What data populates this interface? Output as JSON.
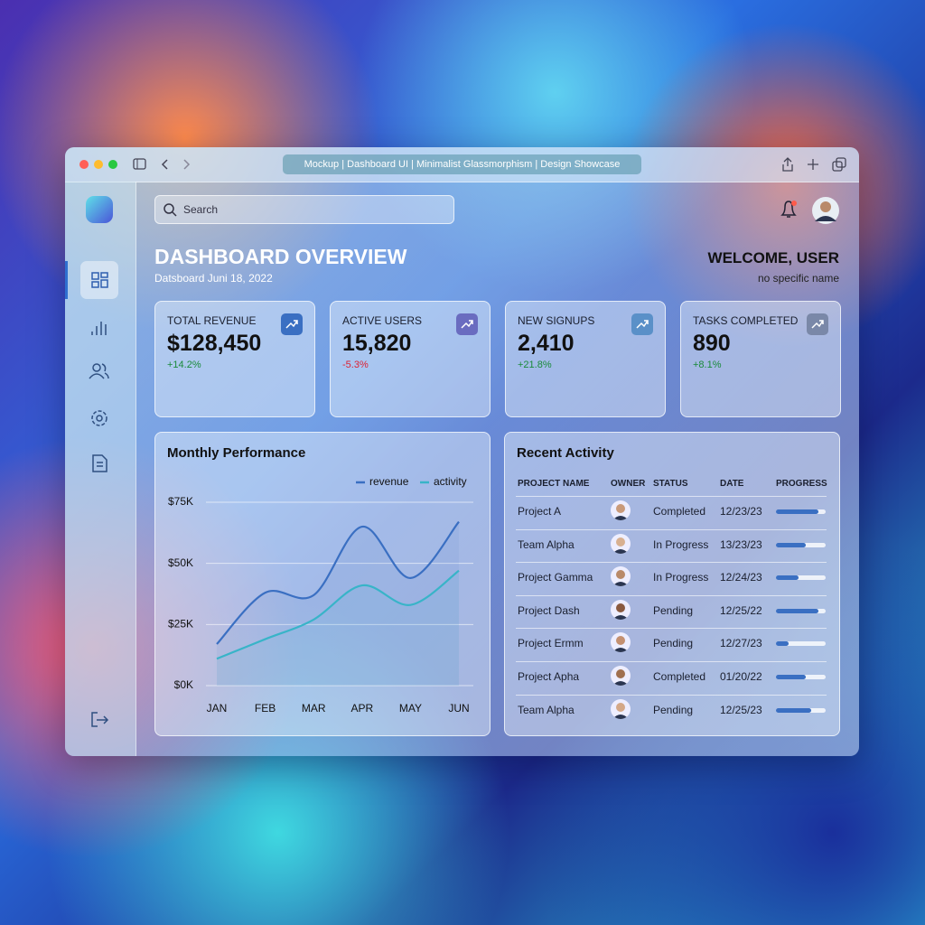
{
  "browser": {
    "tab_title": "Mockup | Dashboard UI | Minimalist Glassmorphism | Design Showcase"
  },
  "search": {
    "placeholder": "Search"
  },
  "header": {
    "title": "DASHBOARD OVERVIEW",
    "subtitle": "Datsboard Juni 18, 2022",
    "welcome": "WELCOME, USER",
    "welcome_sub": "no specific name"
  },
  "stats": [
    {
      "label": "TOTAL REVENUE",
      "value": "$128,450",
      "change": "+14.2%"
    },
    {
      "label": "ACTIVE USERS",
      "value": "15,820",
      "change": "-5.3%"
    },
    {
      "label": "NEW SIGNUPS",
      "value": "2,410",
      "change": "+21.8%"
    },
    {
      "label": "TASKS COMPLETED",
      "value": "890",
      "change": "+8.1%"
    }
  ],
  "chart_data": {
    "type": "line",
    "title": "Monthly Performance",
    "categories": [
      "JAN",
      "FEB",
      "MAR",
      "APR",
      "MAY",
      "JUN"
    ],
    "series": [
      {
        "name": "revenue",
        "color": "#3a6fc2",
        "values": [
          17,
          38,
          37,
          65,
          44,
          67
        ]
      },
      {
        "name": "activity",
        "color": "#38b4c8",
        "values": [
          11,
          19,
          27,
          41,
          33,
          47
        ]
      }
    ],
    "ylim": [
      0,
      75
    ],
    "yticks": [
      {
        "value": 0,
        "label": "$0K"
      },
      {
        "value": 25,
        "label": "$25K"
      },
      {
        "value": 50,
        "label": "$50K"
      },
      {
        "value": 75,
        "label": "$75K"
      }
    ],
    "grid": true,
    "legend": "top-right"
  },
  "activity": {
    "title": "Recent Activity",
    "columns": [
      "PROJECT NAME",
      "OWNER",
      "STATUS",
      "DATE",
      "PROGRESS"
    ],
    "rows": [
      {
        "name": "Project A",
        "status": "Completed",
        "date": "12/23/23",
        "progress": 85
      },
      {
        "name": "Team Alpha",
        "status": "In Progress",
        "date": "13/23/23",
        "progress": 60
      },
      {
        "name": "Project Gamma",
        "status": "In Progress",
        "date": "12/24/23",
        "progress": 45
      },
      {
        "name": "Project Dash",
        "status": "Pending",
        "date": "12/25/22",
        "progress": 85
      },
      {
        "name": "Project Ermm",
        "status": "Pending",
        "date": "12/27/23",
        "progress": 25
      },
      {
        "name": "Project Apha",
        "status": "Completed",
        "date": "01/20/22",
        "progress": 60
      },
      {
        "name": "Team Alpha",
        "status": "Pending",
        "date": "12/25/23",
        "progress": 70
      }
    ]
  }
}
